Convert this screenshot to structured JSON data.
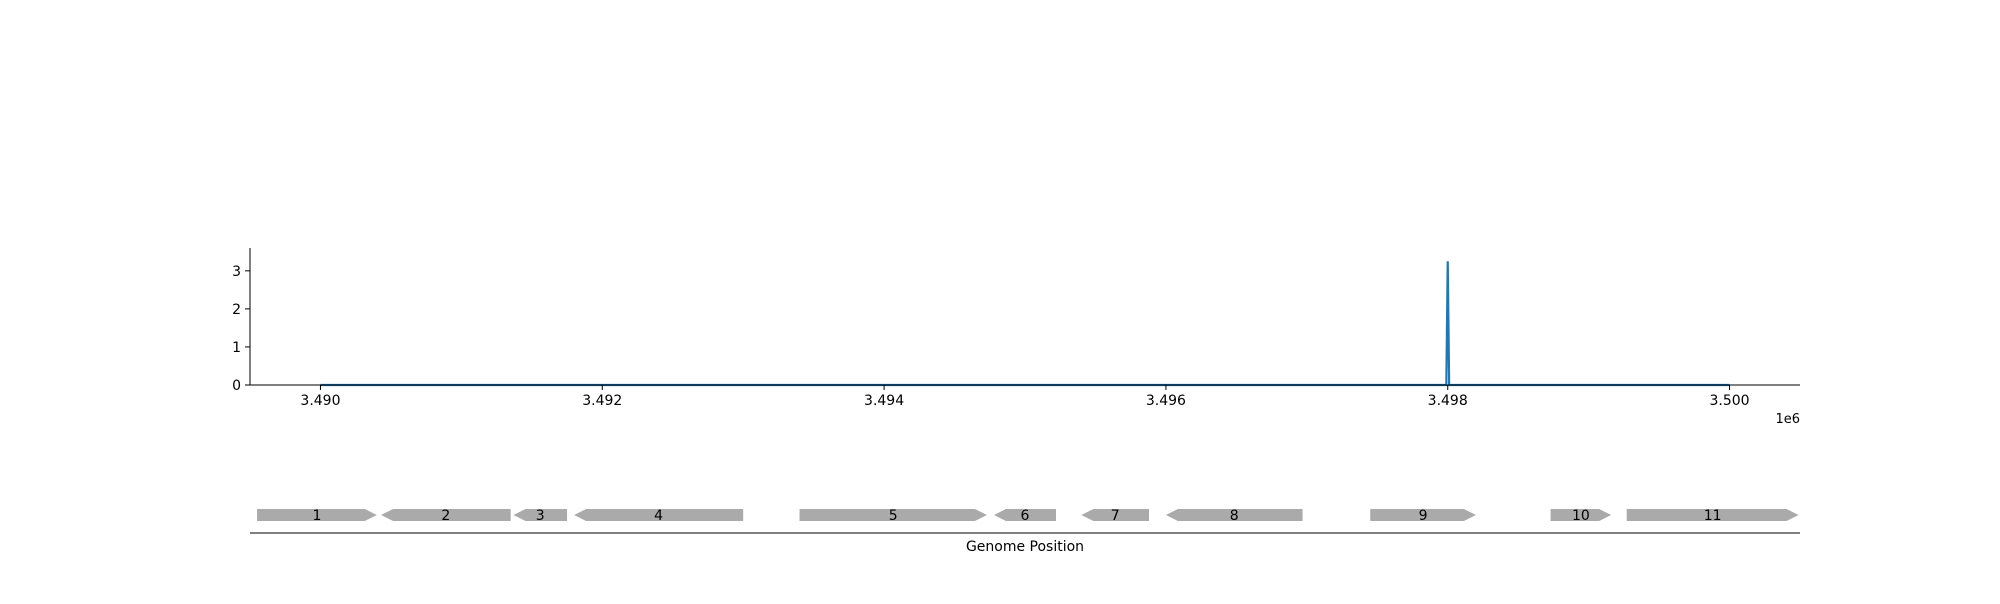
{
  "chart_data": [
    {
      "type": "line",
      "title": "",
      "xlabel": "",
      "ylabel": "",
      "x_offset_label": "1e6",
      "xlim": [
        3.4895,
        3.5005
      ],
      "ylim": [
        0,
        3.6
      ],
      "xticks": [
        3.49,
        3.492,
        3.494,
        3.496,
        3.498,
        3.5
      ],
      "xtick_labels": [
        "3.490",
        "3.492",
        "3.494",
        "3.496",
        "3.498",
        "3.500"
      ],
      "yticks": [
        0,
        1,
        2,
        3
      ],
      "ytick_labels": [
        "0",
        "1",
        "2",
        "3"
      ],
      "grid": false,
      "series": [
        {
          "color": "#1f77b4",
          "x": [
            3.49,
            3.49799,
            3.498,
            3.49801,
            3.5
          ],
          "y": [
            0,
            0,
            3.25,
            0,
            0
          ]
        }
      ]
    },
    {
      "type": "gene-track",
      "xlabel": "Genome Position",
      "gene_color": "#aaaaaa",
      "genes": [
        {
          "label": "1",
          "start": 3.48955,
          "end": 3.4904,
          "strand": "+"
        },
        {
          "label": "2",
          "start": 3.49043,
          "end": 3.49135,
          "strand": "-"
        },
        {
          "label": "3",
          "start": 3.49137,
          "end": 3.49175,
          "strand": "-"
        },
        {
          "label": "4",
          "start": 3.4918,
          "end": 3.493,
          "strand": "-"
        },
        {
          "label": "5",
          "start": 3.4934,
          "end": 3.49473,
          "strand": "+"
        },
        {
          "label": "6",
          "start": 3.49478,
          "end": 3.49522,
          "strand": "-"
        },
        {
          "label": "7",
          "start": 3.4954,
          "end": 3.49588,
          "strand": "-"
        },
        {
          "label": "8",
          "start": 3.496,
          "end": 3.49697,
          "strand": "-"
        },
        {
          "label": "9",
          "start": 3.49745,
          "end": 3.4982,
          "strand": "+"
        },
        {
          "label": "10",
          "start": 3.49873,
          "end": 3.49916,
          "strand": "+"
        },
        {
          "label": "11",
          "start": 3.49927,
          "end": 3.50049,
          "strand": "+"
        }
      ]
    }
  ]
}
